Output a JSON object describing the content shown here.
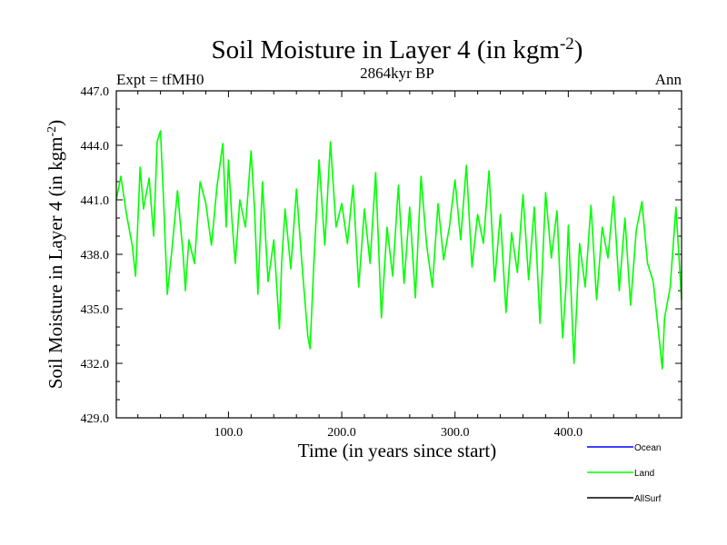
{
  "chart_data": {
    "type": "line",
    "title": "Soil Moisture in Layer 4 (in kgm",
    "title_sup": "-2",
    "title_close": ")",
    "subtitle": "2864kyr BP",
    "left_label": "Expt = tfMH0",
    "right_label": "Ann",
    "xlabel": "Time (in years since start)",
    "ylabel": "Soil Moisture in Layer 4 (in kgm",
    "ylabel_sup": "-2",
    "ylabel_close": ")",
    "xlim": [
      1,
      500
    ],
    "ylim": [
      429,
      447
    ],
    "xticks": [
      100,
      200,
      300,
      400
    ],
    "xtick_labels": [
      "100.0",
      "200.0",
      "300.0",
      "400.0"
    ],
    "yticks": [
      429,
      432,
      435,
      438,
      441,
      444,
      447
    ],
    "ytick_labels": [
      "429.0",
      "432.0",
      "435.0",
      "438.0",
      "441.0",
      "444.0",
      "447.0"
    ],
    "legend": [
      {
        "name": "Ocean",
        "color": "#0000ff"
      },
      {
        "name": "Land",
        "color": "#00ff00"
      },
      {
        "name": "AllSurf",
        "color": "#000000"
      }
    ],
    "series": [
      {
        "name": "Land",
        "color": "#00ff00",
        "x": [
          1,
          5,
          10,
          15,
          18,
          22,
          25,
          30,
          34,
          37,
          40,
          43,
          46,
          50,
          55,
          60,
          62,
          65,
          70,
          75,
          80,
          85,
          90,
          95,
          98,
          100,
          103,
          106,
          110,
          115,
          120,
          123,
          126,
          130,
          135,
          140,
          145,
          147,
          150,
          155,
          160,
          165,
          170,
          172,
          175,
          180,
          185,
          190,
          195,
          200,
          205,
          210,
          215,
          220,
          225,
          230,
          235,
          240,
          245,
          250,
          255,
          260,
          265,
          270,
          275,
          280,
          285,
          290,
          295,
          300,
          305,
          310,
          315,
          320,
          325,
          330,
          335,
          340,
          345,
          350,
          355,
          360,
          365,
          370,
          375,
          380,
          385,
          390,
          395,
          398,
          400,
          405,
          410,
          415,
          420,
          425,
          430,
          435,
          440,
          445,
          450,
          455,
          460,
          465,
          470,
          475,
          480,
          483,
          485,
          490,
          495,
          500
        ],
        "values": [
          441,
          442.3,
          440.2,
          438.5,
          436.8,
          442.8,
          440.5,
          442.2,
          439,
          444.2,
          444.8,
          440.5,
          435.8,
          438.2,
          441.5,
          438,
          436,
          438.8,
          437.5,
          442,
          440.8,
          438.5,
          441.8,
          444.1,
          439.5,
          443.2,
          440,
          437.5,
          441,
          439.5,
          443.7,
          440.5,
          435.8,
          442,
          436.5,
          438.8,
          433.9,
          437.6,
          440.5,
          437.2,
          441.6,
          437.4,
          433.5,
          432.8,
          437,
          443.2,
          438.5,
          444.2,
          439.5,
          440.8,
          438.6,
          441.8,
          436.2,
          440.5,
          437.5,
          442.5,
          434.5,
          439.5,
          436.8,
          441.8,
          436.4,
          440.6,
          435.6,
          442.3,
          438.5,
          436.2,
          440.8,
          437.7,
          439.5,
          442.1,
          438.8,
          442.9,
          437.3,
          440.2,
          438.6,
          442.6,
          436.5,
          440.2,
          434.8,
          439.2,
          437,
          441.3,
          436.6,
          440.6,
          434.2,
          441.4,
          437.8,
          440.4,
          433.4,
          436.3,
          439.6,
          432,
          438.6,
          436.2,
          440.7,
          435.5,
          439.5,
          437.8,
          441.2,
          436,
          440,
          435.2,
          439.3,
          440.9,
          437.5,
          436.5,
          433.5,
          431.7,
          434.5,
          436.2,
          440.6,
          435.5
        ]
      }
    ]
  }
}
